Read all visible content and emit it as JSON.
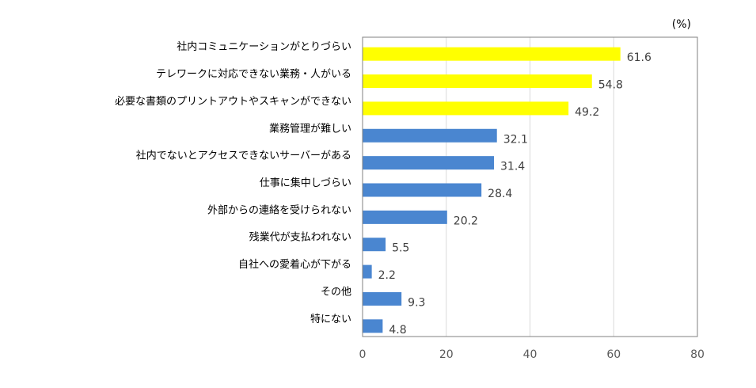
{
  "chart_data": {
    "type": "bar",
    "orientation": "horizontal",
    "unit": "(%)",
    "categories": [
      "社内コミュニケーションがとりづらい",
      "テレワークに対応できない業務・人がいる",
      "必要な書類のプリントアウトやスキャンができない",
      "業務管理が難しい",
      "社内でないとアクセスできないサーバーがある",
      "仕事に集中しづらい",
      "外部からの連絡を受けられない",
      "残業代が支払われない",
      "自社への愛着心が下がる",
      "その他",
      "特にない"
    ],
    "values": [
      61.6,
      54.8,
      49.2,
      32.1,
      31.4,
      28.4,
      20.2,
      5.5,
      2.2,
      9.3,
      4.8
    ],
    "value_labels": [
      "61.6",
      "54.8",
      "49.2",
      "32.1",
      "31.4",
      "28.4",
      "20.2",
      "5.5",
      "2.2",
      "9.3",
      "4.8"
    ],
    "bar_colors": [
      "#ffff00",
      "#ffff00",
      "#ffff00",
      "#4a86d0",
      "#4a86d0",
      "#4a86d0",
      "#4a86d0",
      "#4a86d0",
      "#4a86d0",
      "#4a86d0",
      "#4a86d0"
    ],
    "xlim": [
      0,
      80
    ],
    "xticks": [
      0,
      20,
      40,
      60,
      80
    ],
    "grid": true
  }
}
